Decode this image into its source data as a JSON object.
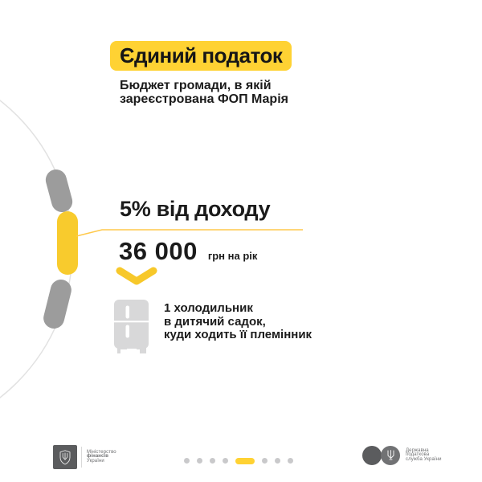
{
  "colors": {
    "background": "#FFFFFF",
    "ink": "#1B1B1B",
    "accent_yellow": "#FFD233",
    "segment_yellow": "#F8CB2D",
    "chevron_yellow": "#F7C82A",
    "callout_yellow": "#FFC94B",
    "segment_gray": "#9C9C9C",
    "arc_gray": "#E2E2E2",
    "fridge_gray": "#D8D8D9",
    "dot_gray": "#C9C9CB",
    "logo_dark": "#5B5C5E",
    "logo_mid": "#717274",
    "footer_text": "#6F7072"
  },
  "header": {
    "title": "Єдиний податок",
    "subtitle_lines": [
      "Бюджет громади, в якій",
      "зареєстрована ФОП Марія"
    ]
  },
  "main": {
    "rate_heading": "5% від доходу",
    "amount": "36 000",
    "amount_unit": "грн на рік",
    "item_lines": [
      "1 холодильник",
      "в дитячий садок,",
      "куди ходить її племінник"
    ]
  },
  "diagram": {
    "description": "ring-fragment with three capsule segments, middle segment active with callout to rate heading",
    "segments": [
      {
        "state": "inactive",
        "color": "#9C9C9C"
      },
      {
        "state": "active",
        "color": "#F8CB2D"
      },
      {
        "state": "inactive",
        "color": "#9C9C9C"
      }
    ]
  },
  "icons": {
    "fridge": "refrigerator-icon",
    "chevron": "chevron-down-icon",
    "trident": "ukraine-trident-emblem"
  },
  "footer": {
    "ministry": {
      "lines": [
        "Міністерство",
        "фінансів",
        "України"
      ]
    },
    "tax_service": {
      "lines": [
        "Державна",
        "податкова",
        "служба України"
      ]
    },
    "pagination": {
      "total": 8,
      "active": 5
    }
  }
}
